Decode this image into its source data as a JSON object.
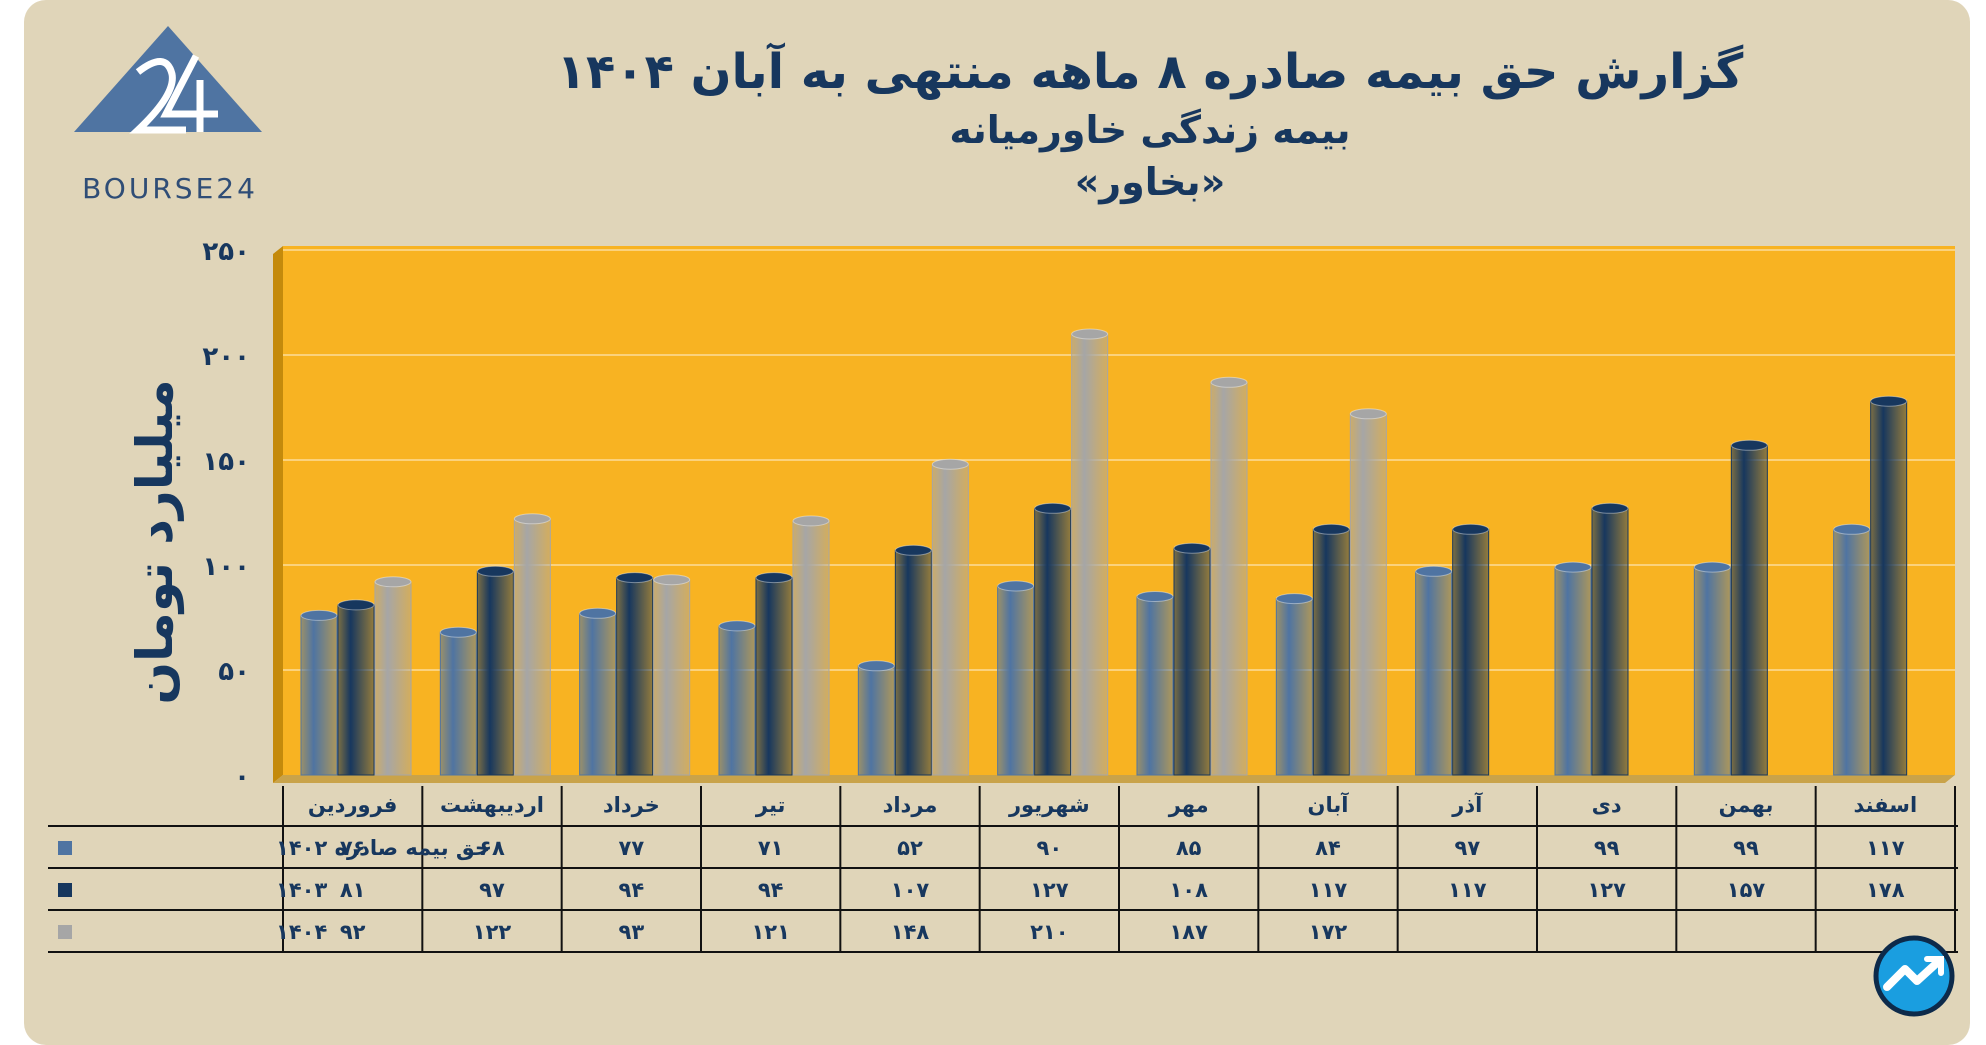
{
  "logo": {
    "text": "BOURSE24"
  },
  "chart_data": {
    "type": "bar",
    "title": "گزارش  حق بیمه صادره ۸ ماهه منتهی به آبان ۱۴۰۴",
    "subtitle": "بیمه زندگی خاورمیانه",
    "ticker": "«بخاور»",
    "xlabel": "",
    "ylabel": "میلیارد تومان",
    "ylim": [
      0,
      250
    ],
    "yticks": [
      0,
      50,
      100,
      150,
      200,
      250
    ],
    "ytick_labels": [
      "۰",
      "۵۰",
      "۱۰۰",
      "۱۵۰",
      "۲۰۰",
      "۲۵۰"
    ],
    "grid": true,
    "categories": [
      "فروردین",
      "اردیبهشت",
      "خرداد",
      "تیر",
      "مرداد",
      "شهریور",
      "مهر",
      "آبان",
      "آذر",
      "دی",
      "بهمن",
      "اسفند"
    ],
    "series": [
      {
        "name": "حق بیمه صادره ۱۴۰۲",
        "color": "#4f74a2",
        "values": [
          76,
          68,
          77,
          71,
          52,
          90,
          85,
          84,
          97,
          99,
          99,
          117
        ],
        "labels": [
          "۷۶",
          "۶۸",
          "۷۷",
          "۷۱",
          "۵۲",
          "۹۰",
          "۸۵",
          "۸۴",
          "۹۷",
          "۹۹",
          "۹۹",
          "۱۱۷"
        ]
      },
      {
        "name": "۱۴۰۳",
        "color": "#17375e",
        "values": [
          81,
          97,
          94,
          94,
          107,
          127,
          108,
          117,
          117,
          127,
          157,
          178
        ],
        "labels": [
          "۸۱",
          "۹۷",
          "۹۴",
          "۹۴",
          "۱۰۷",
          "۱۲۷",
          "۱۰۸",
          "۱۱۷",
          "۱۱۷",
          "۱۲۷",
          "۱۵۷",
          "۱۷۸"
        ]
      },
      {
        "name": "۱۴۰۴",
        "color": "#a6a6a6",
        "values": [
          92,
          122,
          93,
          121,
          148,
          210,
          187,
          172,
          null,
          null,
          null,
          null
        ],
        "labels": [
          "۹۲",
          "۱۲۲",
          "۹۳",
          "۱۲۱",
          "۱۴۸",
          "۲۱۰",
          "۱۸۷",
          "۱۷۲",
          "",
          "",
          "",
          ""
        ]
      }
    ],
    "colors": {
      "plot_bg": "#f8b322",
      "plot_side": "#c48a0c",
      "text": "#17375e"
    }
  }
}
